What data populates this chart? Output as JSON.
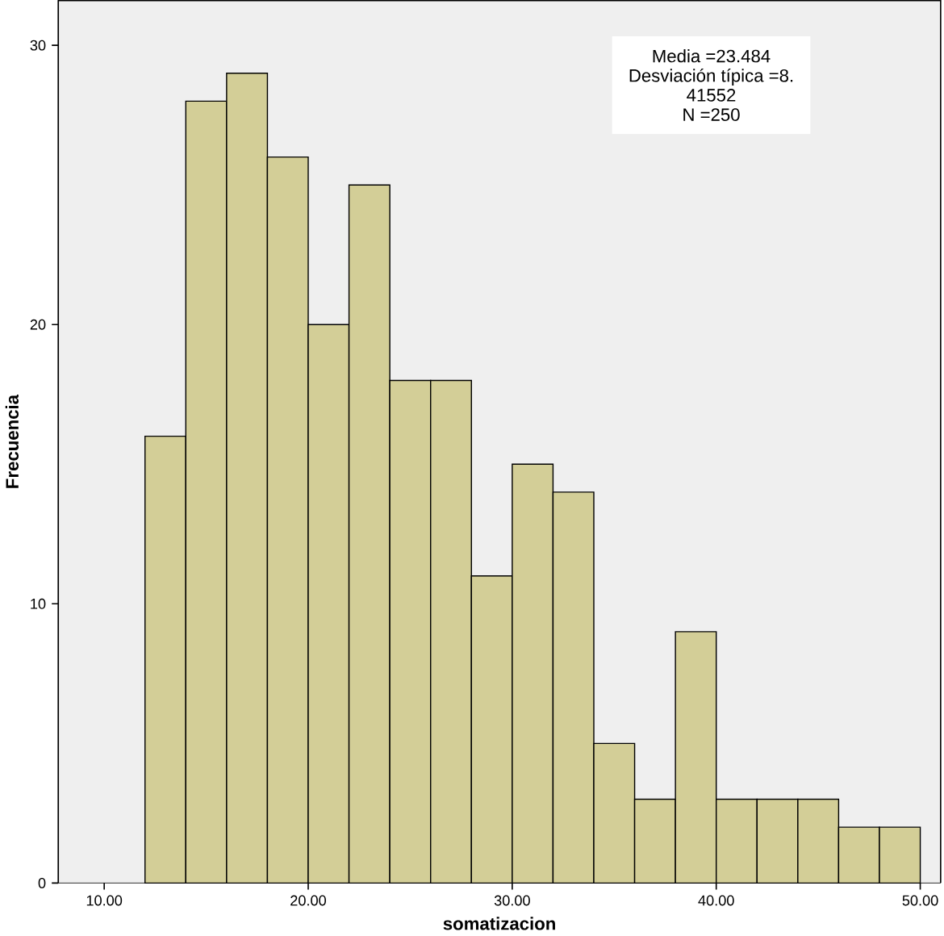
{
  "chart_data": {
    "type": "histogram",
    "xlabel": "somatizacion",
    "ylabel": "Frecuencia",
    "bins": [
      12,
      14,
      16,
      18,
      20,
      22,
      24,
      26,
      28,
      30,
      32,
      34,
      36,
      38,
      40,
      42,
      44,
      46,
      48,
      50
    ],
    "values": [
      16,
      28,
      29,
      26,
      20,
      25,
      18,
      18,
      11,
      15,
      14,
      5,
      3,
      9,
      3,
      3,
      3,
      2,
      2
    ],
    "color": "#d3ce97",
    "xlim": [
      7.75,
      51
    ],
    "ylim": [
      0,
      31.6
    ],
    "xticks": [
      {
        "value": 10,
        "label": "10.00"
      },
      {
        "value": 20,
        "label": "20.00"
      },
      {
        "value": 30,
        "label": "30.00"
      },
      {
        "value": 40,
        "label": "40.00"
      },
      {
        "value": 50,
        "label": "50.00"
      }
    ],
    "yticks": [
      0,
      10,
      20,
      30
    ],
    "annotations": [
      "Media =23.484",
      "Desviación típica =8.",
      "41552",
      "N =250"
    ]
  }
}
